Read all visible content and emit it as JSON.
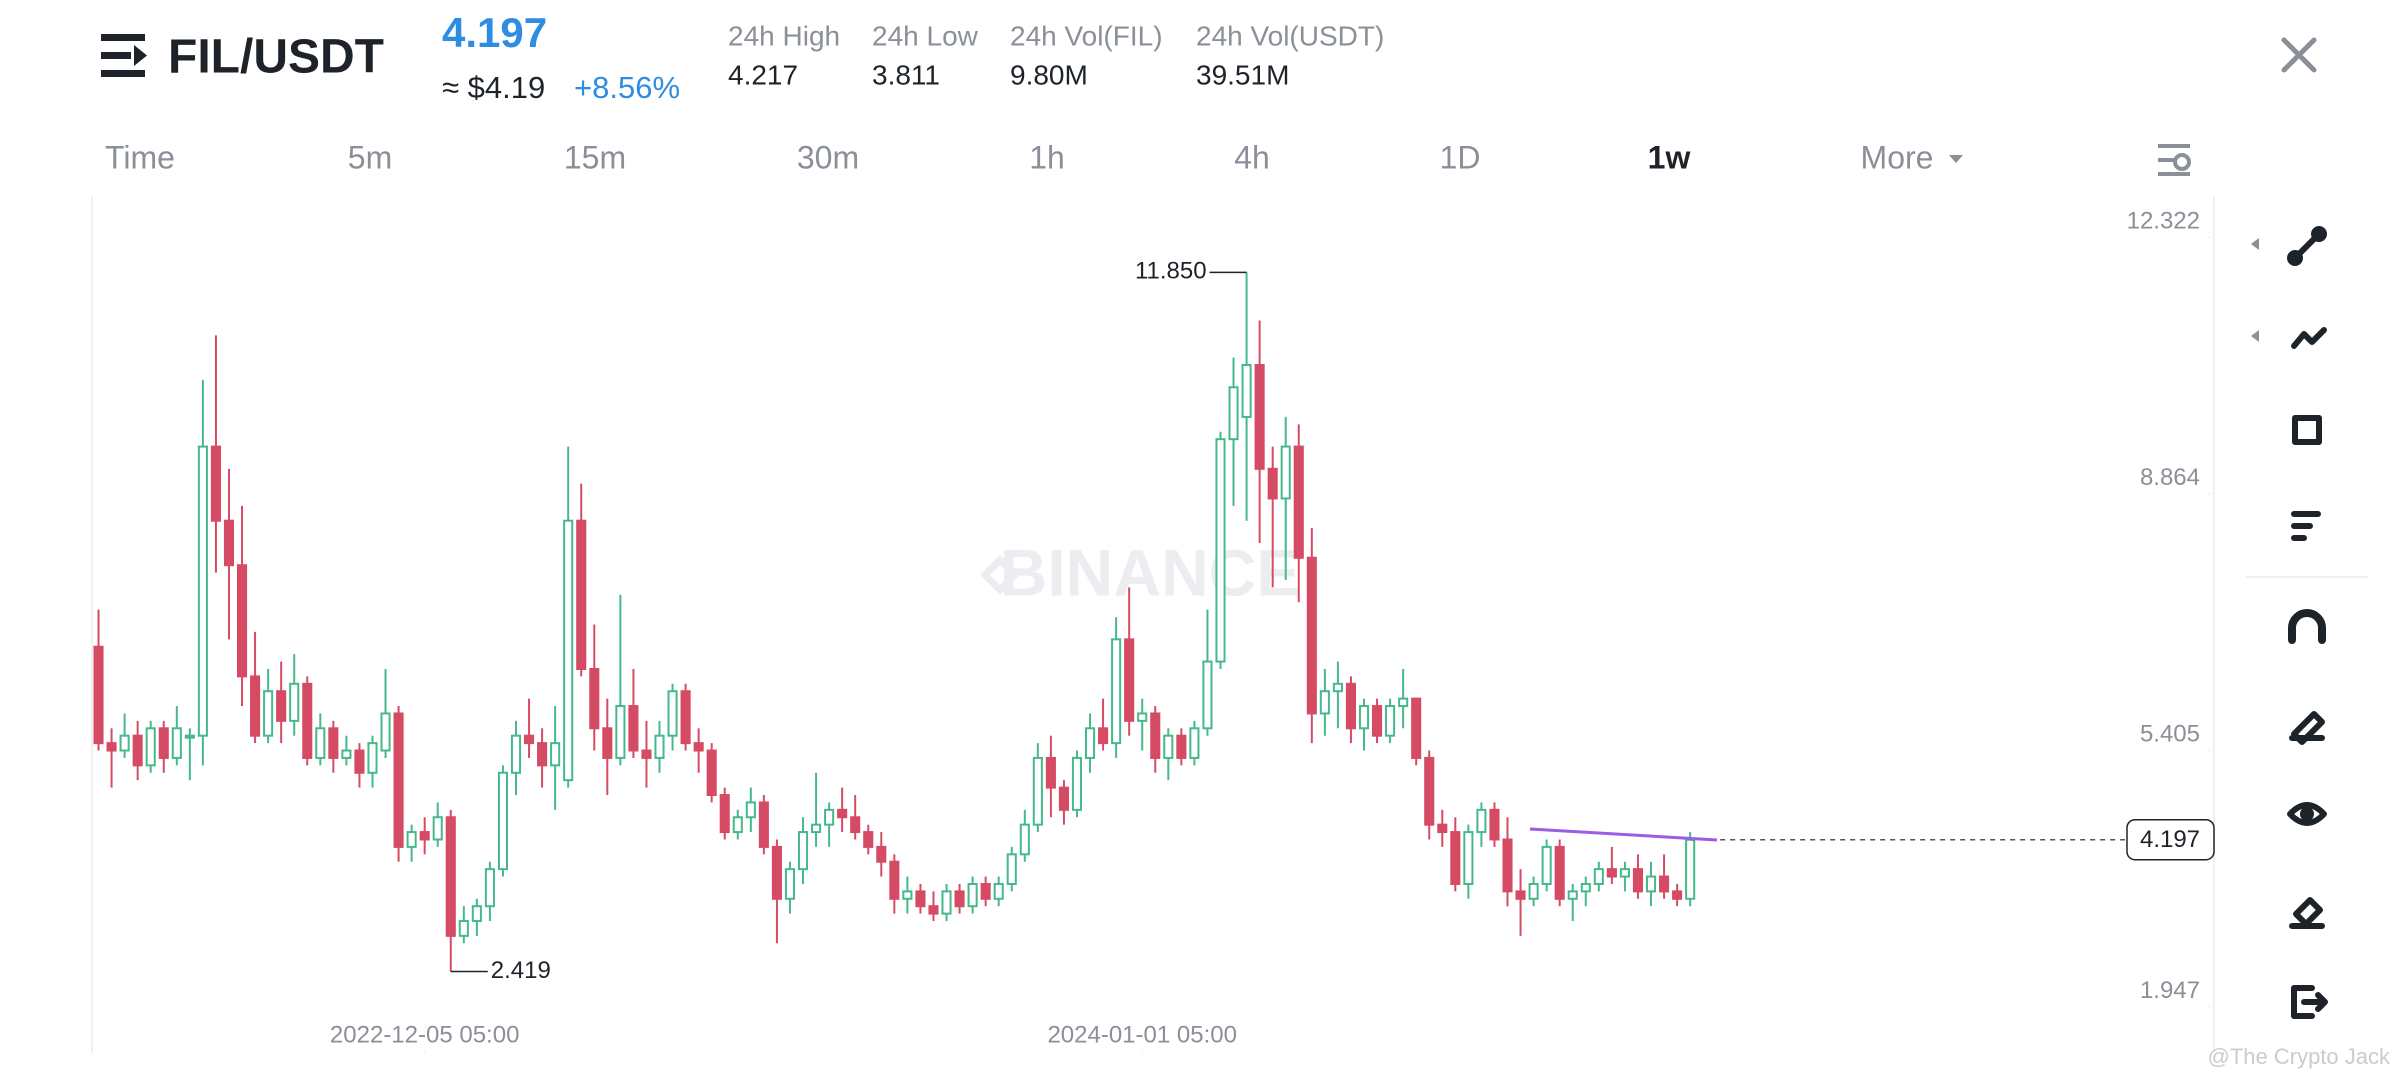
{
  "header": {
    "pair": "FIL/USDT",
    "price": "4.197",
    "fiat_price": "≈ $4.19",
    "change": "+8.56%",
    "stats": [
      {
        "label": "24h High",
        "value": "4.217"
      },
      {
        "label": "24h Low",
        "value": "3.811"
      },
      {
        "label": "24h Vol(FIL)",
        "value": "9.80M"
      },
      {
        "label": "24h Vol(USDT)",
        "value": "39.51M"
      }
    ]
  },
  "timeframes": [
    "Time",
    "5m",
    "15m",
    "30m",
    "1h",
    "4h",
    "1D",
    "1w",
    "More"
  ],
  "selected_timeframe": "1w",
  "watermarks": [
    "BINANCE",
    "@The Crypto Jack"
  ],
  "chart_data": {
    "type": "candlestick",
    "up_color": "#45b98b",
    "down_color": "#d64b64",
    "ylim": [
      1.32,
      12.88
    ],
    "yticks": [
      1.947,
      5.405,
      8.864,
      12.322
    ],
    "xlim": [
      -0.5,
      162
    ],
    "xticks": [
      {
        "value": 25,
        "label": "2022-12-05 05:00"
      },
      {
        "value": 80,
        "label": "2024-01-01 05:00"
      }
    ],
    "price_line": 4.197,
    "annotations": [
      {
        "label": "11.850",
        "value": 11.85,
        "x": 88
      },
      {
        "label": "2.419",
        "value": 2.419,
        "x": 27
      }
    ],
    "candles": [
      [
        6.8,
        7.3,
        5.4,
        5.5
      ],
      [
        5.5,
        5.7,
        4.9,
        5.4
      ],
      [
        5.4,
        5.9,
        5.3,
        5.6
      ],
      [
        5.6,
        5.8,
        5.0,
        5.2
      ],
      [
        5.2,
        5.8,
        5.1,
        5.7
      ],
      [
        5.7,
        5.8,
        5.1,
        5.3
      ],
      [
        5.3,
        6.0,
        5.2,
        5.7
      ],
      [
        5.6,
        5.7,
        5.0,
        5.6
      ],
      [
        5.6,
        10.4,
        5.2,
        9.5
      ],
      [
        9.5,
        11.0,
        7.8,
        8.5
      ],
      [
        8.5,
        9.2,
        6.9,
        7.9
      ],
      [
        7.9,
        8.7,
        6.0,
        6.4
      ],
      [
        6.4,
        7.0,
        5.5,
        5.6
      ],
      [
        5.6,
        6.5,
        5.5,
        6.2
      ],
      [
        6.2,
        6.6,
        5.5,
        5.8
      ],
      [
        5.8,
        6.7,
        5.6,
        6.3
      ],
      [
        6.3,
        6.4,
        5.2,
        5.3
      ],
      [
        5.3,
        5.9,
        5.2,
        5.7
      ],
      [
        5.7,
        5.8,
        5.1,
        5.3
      ],
      [
        5.3,
        5.6,
        5.2,
        5.4
      ],
      [
        5.4,
        5.5,
        4.9,
        5.1
      ],
      [
        5.1,
        5.6,
        4.9,
        5.5
      ],
      [
        5.4,
        6.5,
        5.3,
        5.9
      ],
      [
        5.9,
        6.0,
        3.9,
        4.1
      ],
      [
        4.1,
        4.4,
        3.9,
        4.3
      ],
      [
        4.3,
        4.5,
        4.0,
        4.2
      ],
      [
        4.2,
        4.7,
        4.1,
        4.5
      ],
      [
        4.5,
        4.6,
        2.419,
        2.9
      ],
      [
        2.9,
        3.3,
        2.8,
        3.1
      ],
      [
        3.1,
        3.4,
        2.9,
        3.3
      ],
      [
        3.3,
        3.9,
        3.1,
        3.8
      ],
      [
        3.8,
        5.2,
        3.7,
        5.1
      ],
      [
        5.1,
        5.8,
        4.8,
        5.6
      ],
      [
        5.6,
        6.1,
        5.3,
        5.5
      ],
      [
        5.5,
        5.7,
        4.9,
        5.2
      ],
      [
        5.2,
        6.0,
        4.6,
        5.5
      ],
      [
        5.0,
        9.5,
        4.9,
        8.5
      ],
      [
        8.5,
        9.0,
        6.4,
        6.5
      ],
      [
        6.5,
        7.1,
        5.4,
        5.7
      ],
      [
        5.7,
        6.1,
        4.8,
        5.3
      ],
      [
        5.3,
        7.5,
        5.2,
        6.0
      ],
      [
        6.0,
        6.5,
        5.3,
        5.4
      ],
      [
        5.4,
        5.8,
        4.9,
        5.3
      ],
      [
        5.3,
        5.8,
        5.1,
        5.6
      ],
      [
        5.6,
        6.3,
        5.4,
        6.2
      ],
      [
        6.2,
        6.3,
        5.4,
        5.5
      ],
      [
        5.5,
        5.7,
        5.1,
        5.4
      ],
      [
        5.4,
        5.5,
        4.7,
        4.8
      ],
      [
        4.8,
        4.9,
        4.2,
        4.3
      ],
      [
        4.3,
        4.6,
        4.2,
        4.5
      ],
      [
        4.5,
        4.9,
        4.3,
        4.7
      ],
      [
        4.7,
        4.8,
        4.0,
        4.1
      ],
      [
        4.1,
        4.2,
        2.8,
        3.4
      ],
      [
        3.4,
        3.9,
        3.2,
        3.8
      ],
      [
        3.8,
        4.5,
        3.6,
        4.3
      ],
      [
        4.3,
        5.1,
        4.1,
        4.4
      ],
      [
        4.4,
        4.7,
        4.1,
        4.6
      ],
      [
        4.6,
        4.9,
        4.3,
        4.5
      ],
      [
        4.5,
        4.8,
        4.2,
        4.3
      ],
      [
        4.3,
        4.4,
        4.0,
        4.1
      ],
      [
        4.1,
        4.3,
        3.7,
        3.9
      ],
      [
        3.9,
        4.0,
        3.2,
        3.4
      ],
      [
        3.4,
        3.7,
        3.2,
        3.5
      ],
      [
        3.5,
        3.6,
        3.2,
        3.3
      ],
      [
        3.3,
        3.5,
        3.1,
        3.2
      ],
      [
        3.2,
        3.6,
        3.1,
        3.5
      ],
      [
        3.5,
        3.6,
        3.2,
        3.3
      ],
      [
        3.3,
        3.7,
        3.2,
        3.6
      ],
      [
        3.6,
        3.7,
        3.3,
        3.4
      ],
      [
        3.4,
        3.7,
        3.3,
        3.6
      ],
      [
        3.6,
        4.1,
        3.5,
        4.0
      ],
      [
        4.0,
        4.6,
        3.9,
        4.4
      ],
      [
        4.4,
        5.5,
        4.3,
        5.3
      ],
      [
        5.3,
        5.6,
        4.5,
        4.9
      ],
      [
        4.9,
        5.0,
        4.4,
        4.6
      ],
      [
        4.6,
        5.4,
        4.5,
        5.3
      ],
      [
        5.3,
        5.9,
        5.1,
        5.7
      ],
      [
        5.7,
        6.1,
        5.4,
        5.5
      ],
      [
        5.5,
        7.2,
        5.3,
        6.9
      ],
      [
        6.9,
        7.6,
        5.6,
        5.8
      ],
      [
        5.8,
        6.1,
        5.4,
        5.9
      ],
      [
        5.9,
        6.0,
        5.1,
        5.3
      ],
      [
        5.3,
        5.7,
        5.0,
        5.6
      ],
      [
        5.6,
        5.7,
        5.2,
        5.3
      ],
      [
        5.3,
        5.8,
        5.2,
        5.7
      ],
      [
        5.7,
        7.3,
        5.6,
        6.6
      ],
      [
        6.6,
        9.7,
        6.5,
        9.6
      ],
      [
        9.6,
        10.7,
        8.7,
        10.3
      ],
      [
        9.9,
        11.85,
        8.5,
        10.6
      ],
      [
        10.6,
        11.2,
        8.2,
        9.2
      ],
      [
        9.2,
        9.5,
        7.6,
        8.8
      ],
      [
        8.8,
        9.9,
        7.7,
        9.5
      ],
      [
        9.5,
        9.8,
        7.4,
        8.0
      ],
      [
        8.0,
        8.4,
        5.5,
        5.9
      ],
      [
        5.9,
        6.5,
        5.6,
        6.2
      ],
      [
        6.2,
        6.6,
        5.7,
        6.3
      ],
      [
        6.3,
        6.4,
        5.5,
        5.7
      ],
      [
        5.7,
        6.1,
        5.4,
        6.0
      ],
      [
        6.0,
        6.1,
        5.5,
        5.6
      ],
      [
        5.6,
        6.1,
        5.5,
        6.0
      ],
      [
        6.0,
        6.5,
        5.7,
        6.1
      ],
      [
        6.1,
        6.1,
        5.2,
        5.3
      ],
      [
        5.3,
        5.4,
        4.2,
        4.4
      ],
      [
        4.4,
        4.6,
        4.1,
        4.3
      ],
      [
        4.3,
        4.5,
        3.5,
        3.6
      ],
      [
        3.6,
        4.4,
        3.4,
        4.3
      ],
      [
        4.3,
        4.7,
        4.1,
        4.6
      ],
      [
        4.6,
        4.7,
        4.1,
        4.2
      ],
      [
        4.2,
        4.5,
        3.3,
        3.5
      ],
      [
        3.5,
        3.8,
        2.9,
        3.4
      ],
      [
        3.4,
        3.7,
        3.3,
        3.6
      ],
      [
        3.6,
        4.2,
        3.5,
        4.1
      ],
      [
        4.1,
        4.2,
        3.3,
        3.4
      ],
      [
        3.4,
        3.6,
        3.1,
        3.5
      ],
      [
        3.5,
        3.7,
        3.3,
        3.6
      ],
      [
        3.6,
        3.9,
        3.5,
        3.8
      ],
      [
        3.8,
        4.1,
        3.6,
        3.7
      ],
      [
        3.7,
        3.9,
        3.5,
        3.8
      ],
      [
        3.8,
        4.0,
        3.4,
        3.5
      ],
      [
        3.5,
        3.9,
        3.3,
        3.7
      ],
      [
        3.7,
        4.0,
        3.4,
        3.5
      ],
      [
        3.5,
        3.6,
        3.3,
        3.4
      ],
      [
        3.4,
        4.3,
        3.3,
        4.197
      ]
    ]
  }
}
